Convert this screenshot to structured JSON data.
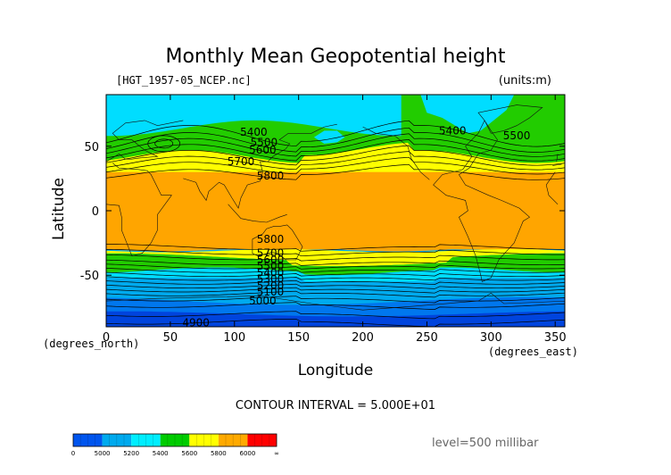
{
  "chart_data": {
    "type": "heatmap",
    "title": "Monthly Mean Geopotential height",
    "file_label": "[HGT_1957-05_NCEP.nc]",
    "units_label": "(units:m)",
    "xlabel": "Longitude",
    "ylabel": "Latitude",
    "x_unit_label": "(degrees_east)",
    "y_unit_label": "(degrees_north)",
    "xlim": [
      0,
      357.5
    ],
    "ylim": [
      -90,
      90
    ],
    "x_ticks": [
      0,
      50,
      100,
      150,
      200,
      250,
      300,
      350
    ],
    "y_ticks": [
      -50,
      0,
      50
    ],
    "contour_interval_text": "CONTOUR INTERVAL = 5.000E+01",
    "level_text": "level=500 millibar",
    "contour_labels": [
      {
        "text": "5400",
        "lon": 115,
        "lat": 61
      },
      {
        "text": "5500",
        "lon": 123,
        "lat": 53
      },
      {
        "text": "5600",
        "lon": 122,
        "lat": 47
      },
      {
        "text": "5700",
        "lon": 105,
        "lat": 38
      },
      {
        "text": "5800",
        "lon": 128,
        "lat": 27
      },
      {
        "text": "5800",
        "lon": 128,
        "lat": -22
      },
      {
        "text": "5700",
        "lon": 128,
        "lat": -33
      },
      {
        "text": "5600",
        "lon": 128,
        "lat": -38
      },
      {
        "text": "5500",
        "lon": 128,
        "lat": -43
      },
      {
        "text": "5400",
        "lon": 128,
        "lat": -48
      },
      {
        "text": "5300",
        "lon": 128,
        "lat": -53
      },
      {
        "text": "5200",
        "lon": 128,
        "lat": -58
      },
      {
        "text": "5100",
        "lon": 128,
        "lat": -63
      },
      {
        "text": "5000",
        "lon": 122,
        "lat": -70
      },
      {
        "text": "4900",
        "lon": 70,
        "lat": -87
      },
      {
        "text": "5400",
        "lon": 270,
        "lat": 62
      },
      {
        "text": "5500",
        "lon": 320,
        "lat": 58
      }
    ],
    "colorbar": {
      "labels": [
        "0",
        "5000",
        "5200",
        "5400",
        "5600",
        "5800",
        "6000",
        "∞"
      ],
      "colors": [
        "#0055ee",
        "#00aaee",
        "#00eeff",
        "#00cc00",
        "#ffff00",
        "#ffaa00",
        "#ff0000"
      ]
    },
    "band_colors": {
      "b4900": "#0044dd",
      "b5000": "#0077ee",
      "b5200": "#00aaee",
      "b5400": "#00ddff",
      "b5600": "#22cc00",
      "b5800": "#ffff00",
      "b5850": "#ffa500"
    }
  }
}
